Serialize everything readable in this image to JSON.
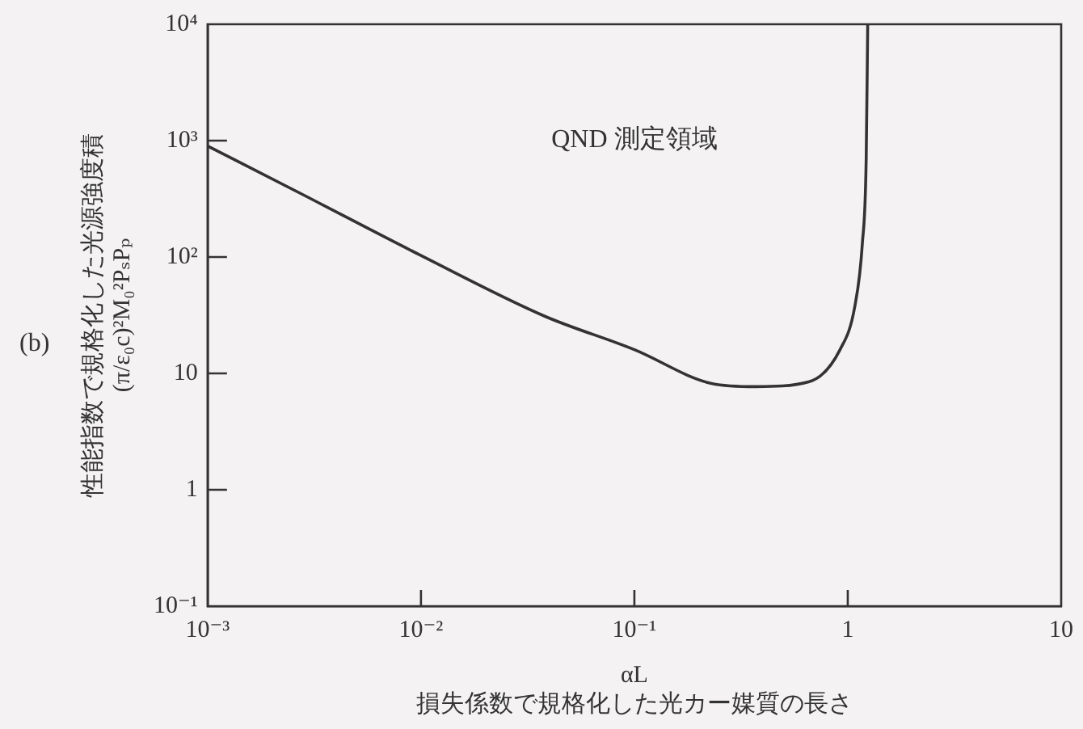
{
  "chart_data": {
    "type": "line",
    "xlabel": "αL\n損失係数で規格化した光カー媒質の長さ",
    "ylabel": "性能指数で規格化した光源強度積\n(π/ε₀c)²M₀²PₛPₚ",
    "annotations": [
      "QND 測定領域",
      "(b)"
    ],
    "x": [
      0.001,
      0.0027,
      0.01,
      0.038,
      0.1,
      0.23,
      0.37,
      0.66,
      0.92,
      1.08,
      1.17,
      1.22,
      1.24
    ],
    "series": [
      {
        "color": "#333333",
        "values": [
          900,
          355,
          103,
          31,
          16,
          8.2,
          7.7,
          8.5,
          16,
          38,
          130,
          700,
          10000
        ]
      }
    ],
    "log": "xy",
    "xlim": [
      0.001,
      10
    ],
    "ylim": [
      0.1,
      10000
    ],
    "xticks": [
      {
        "value": 0.001,
        "label": "10⁻³"
      },
      {
        "value": 0.01,
        "label": "10⁻²"
      },
      {
        "value": 0.1,
        "label": "10⁻¹"
      },
      1,
      10
    ],
    "yticks": [
      {
        "value": 0.1,
        "label": "10⁻¹"
      },
      1,
      10,
      {
        "value": 100,
        "label": "10²"
      },
      {
        "value": 1000,
        "label": "10³"
      },
      {
        "value": 10000,
        "label": "10⁴"
      }
    ],
    "grid": false,
    "legend": false,
    "marker": "none",
    "line_style": "solid"
  }
}
